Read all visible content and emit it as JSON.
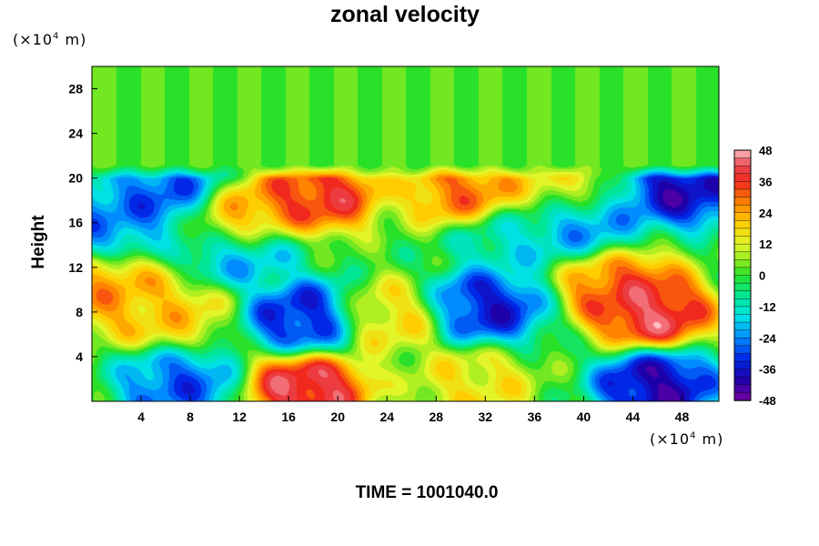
{
  "chart_data": {
    "type": "heatmap",
    "title": "zonal velocity",
    "ylabel": "Height",
    "x_unit": {
      "prefix": "(×10",
      "exp": "4",
      "suffix": " m)"
    },
    "y_unit": {
      "prefix": "(×10",
      "exp": "4",
      "suffix": " m)"
    },
    "xlim": [
      0,
      51
    ],
    "ylim": [
      0,
      30
    ],
    "x_ticks": [
      4,
      8,
      12,
      16,
      20,
      24,
      28,
      32,
      36,
      40,
      44,
      48
    ],
    "y_ticks": [
      4,
      8,
      12,
      16,
      20,
      24,
      28
    ],
    "colorbar": {
      "min": -48,
      "max": 48,
      "ticks": [
        48,
        36,
        24,
        12,
        0,
        -12,
        -24,
        -36,
        -48
      ]
    },
    "annotation": "TIME = 1001040.0",
    "features": [
      {
        "x": 17.5,
        "y": 1.2,
        "value": 48
      },
      {
        "x": 45.5,
        "y": 8.0,
        "value": 48
      },
      {
        "x": 43.0,
        "y": 10.5,
        "value": 36
      },
      {
        "x": 1.5,
        "y": 9.5,
        "value": 28
      },
      {
        "x": 6.0,
        "y": 8.0,
        "value": 22
      },
      {
        "x": 24.0,
        "y": 7.5,
        "value": 20
      },
      {
        "x": 31.0,
        "y": 1.5,
        "value": 18
      },
      {
        "x": 18.5,
        "y": 18.5,
        "value": 42
      },
      {
        "x": 30.5,
        "y": 18.8,
        "value": 34
      },
      {
        "x": 12.0,
        "y": 16.5,
        "value": 34
      },
      {
        "x": 38.0,
        "y": 19.5,
        "value": 18
      },
      {
        "x": 17.5,
        "y": 7.5,
        "value": -40
      },
      {
        "x": 32.0,
        "y": 8.5,
        "value": -40
      },
      {
        "x": 46.0,
        "y": 1.5,
        "value": -46
      },
      {
        "x": 7.0,
        "y": 1.5,
        "value": -32
      },
      {
        "x": 6.5,
        "y": 18.5,
        "value": -34
      },
      {
        "x": 48.0,
        "y": 19.0,
        "value": -44
      },
      {
        "x": 1.0,
        "y": 16.5,
        "value": -28
      },
      {
        "x": 40.0,
        "y": 16.0,
        "value": -26
      },
      {
        "x": 12.0,
        "y": 13.5,
        "value": -24
      },
      {
        "x": 34.0,
        "y": 14.5,
        "value": -16
      }
    ],
    "upper_layer": {
      "y_from": 20,
      "y_to": 30,
      "value": 2
    }
  }
}
